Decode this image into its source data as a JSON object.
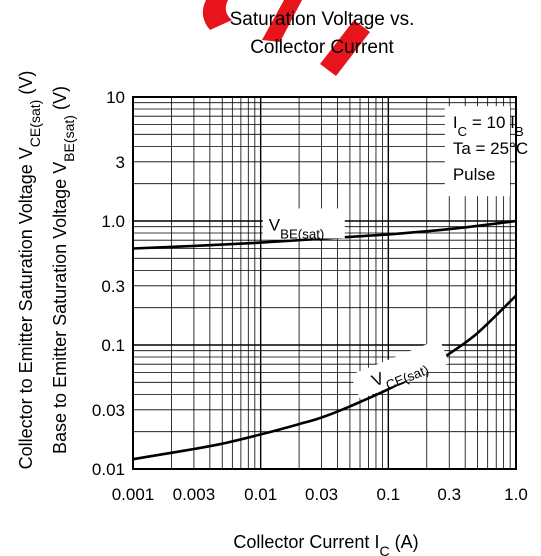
{
  "chart_data": {
    "type": "line",
    "title_lines": [
      "Saturation Voltage vs.",
      "Collector Current"
    ],
    "x_scale": "log",
    "y_scale": "log",
    "xlim": [
      0.001,
      1.0
    ],
    "ylim": [
      0.01,
      10
    ],
    "grid": true,
    "x_ticks": [
      0.001,
      0.003,
      0.01,
      0.03,
      0.1,
      0.3,
      1.0
    ],
    "x_tick_labels": [
      "0.001",
      "0.003",
      "0.01",
      "0.03",
      "0.1",
      "0.3",
      "1.0"
    ],
    "y_ticks": [
      0.01,
      0.03,
      0.1,
      0.3,
      1.0,
      3,
      10
    ],
    "y_tick_labels": [
      "0.01",
      "0.03",
      "0.1",
      "0.3",
      "1.0",
      "3",
      "10"
    ],
    "xlabel": {
      "text": "Collector Current  I",
      "sub": "C",
      "unit": "  (A)"
    },
    "ylabel_lines": [
      {
        "text": "Collector to Emitter Saturation Voltage  V",
        "sub": "CE(sat)",
        "unit": "  (V)"
      },
      {
        "text": "Base to Emitter Saturation Voltage  V",
        "sub": "BE(sat)",
        "unit": "  (V)"
      }
    ],
    "conditions": [
      {
        "text": "I",
        "sub": "C",
        "rest": " = 10 I",
        "sub2": "B"
      },
      {
        "text": "Ta = 25°C"
      },
      {
        "text": "Pulse"
      }
    ],
    "series": [
      {
        "name": "VBE(sat)",
        "label": {
          "text": "V",
          "sub": "BE(sat)"
        },
        "x": [
          0.001,
          0.003,
          0.01,
          0.03,
          0.1,
          0.3,
          1.0
        ],
        "y": [
          0.6,
          0.63,
          0.67,
          0.72,
          0.78,
          0.86,
          1.0
        ]
      },
      {
        "name": "VCE(sat)",
        "label": {
          "text": "V",
          "sub": "CE(sat)"
        },
        "x": [
          0.001,
          0.002,
          0.003,
          0.005,
          0.01,
          0.02,
          0.03,
          0.05,
          0.1,
          0.2,
          0.3,
          0.5,
          1.0
        ],
        "y": [
          0.012,
          0.0135,
          0.0145,
          0.016,
          0.019,
          0.023,
          0.026,
          0.032,
          0.044,
          0.065,
          0.085,
          0.125,
          0.25
        ]
      }
    ],
    "watermark_color": "#e8141c"
  }
}
